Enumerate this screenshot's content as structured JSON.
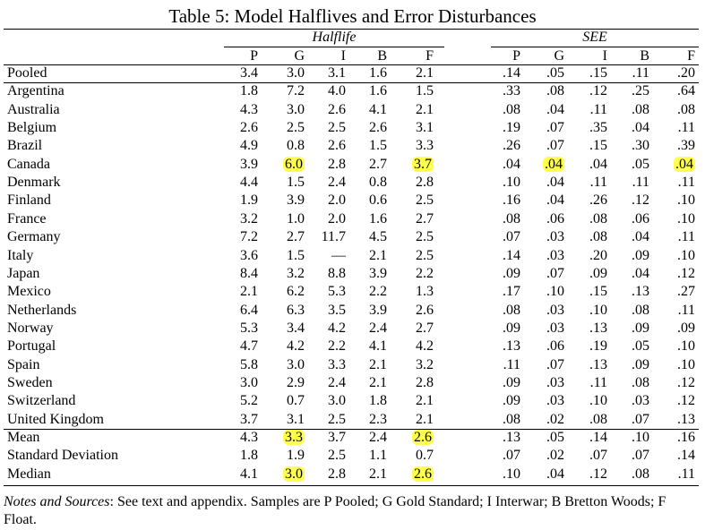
{
  "title": "Table 5: Model Halflives and Error Disturbances",
  "groups": {
    "halflife": "Halflife",
    "see": "SEE"
  },
  "columns": [
    "P",
    "G",
    "I",
    "B",
    "F"
  ],
  "rows": [
    {
      "label": "Pooled",
      "h": [
        "3.4",
        "3.0",
        "3.1",
        "1.6",
        "2.1"
      ],
      "s": [
        ".14",
        ".05",
        ".15",
        ".11",
        ".20"
      ]
    },
    {
      "label": "Argentina",
      "h": [
        "1.8",
        "7.2",
        "4.0",
        "1.6",
        "1.5"
      ],
      "s": [
        ".33",
        ".08",
        ".12",
        ".25",
        ".64"
      ]
    },
    {
      "label": "Australia",
      "h": [
        "4.3",
        "3.0",
        "2.6",
        "4.1",
        "2.1"
      ],
      "s": [
        ".08",
        ".04",
        ".11",
        ".08",
        ".08"
      ]
    },
    {
      "label": "Belgium",
      "h": [
        "2.6",
        "2.5",
        "2.5",
        "2.6",
        "3.1"
      ],
      "s": [
        ".19",
        ".07",
        ".35",
        ".04",
        ".11"
      ]
    },
    {
      "label": "Brazil",
      "h": [
        "4.9",
        "0.8",
        "2.6",
        "1.5",
        "3.3"
      ],
      "s": [
        ".26",
        ".07",
        ".15",
        ".30",
        ".39"
      ]
    },
    {
      "label": "Canada",
      "h": [
        "3.9",
        "6.0",
        "2.8",
        "2.7",
        "3.7"
      ],
      "s": [
        ".04",
        ".04",
        ".04",
        ".05",
        ".04"
      ]
    },
    {
      "label": "Denmark",
      "h": [
        "4.4",
        "1.5",
        "2.4",
        "0.8",
        "2.8"
      ],
      "s": [
        ".10",
        ".04",
        ".11",
        ".11",
        ".11"
      ]
    },
    {
      "label": "Finland",
      "h": [
        "1.9",
        "3.9",
        "2.0",
        "0.6",
        "2.5"
      ],
      "s": [
        ".16",
        ".04",
        ".26",
        ".12",
        ".10"
      ]
    },
    {
      "label": "France",
      "h": [
        "3.2",
        "1.0",
        "2.0",
        "1.6",
        "2.7"
      ],
      "s": [
        ".08",
        ".06",
        ".08",
        ".06",
        ".10"
      ]
    },
    {
      "label": "Germany",
      "h": [
        "7.2",
        "2.7",
        "11.7",
        "4.5",
        "2.5"
      ],
      "s": [
        ".07",
        ".03",
        ".08",
        ".04",
        ".11"
      ]
    },
    {
      "label": "Italy",
      "h": [
        "3.6",
        "1.5",
        "—",
        "2.1",
        "2.5"
      ],
      "s": [
        ".14",
        ".03",
        ".20",
        ".09",
        ".10"
      ]
    },
    {
      "label": "Japan",
      "h": [
        "8.4",
        "3.2",
        "8.8",
        "3.9",
        "2.2"
      ],
      "s": [
        ".09",
        ".07",
        ".09",
        ".04",
        ".12"
      ]
    },
    {
      "label": "Mexico",
      "h": [
        "2.1",
        "6.2",
        "5.3",
        "2.2",
        "1.3"
      ],
      "s": [
        ".17",
        ".10",
        ".15",
        ".13",
        ".27"
      ]
    },
    {
      "label": "Netherlands",
      "h": [
        "6.4",
        "6.3",
        "3.5",
        "3.9",
        "2.6"
      ],
      "s": [
        ".08",
        ".03",
        ".10",
        ".08",
        ".11"
      ]
    },
    {
      "label": "Norway",
      "h": [
        "5.3",
        "3.4",
        "4.2",
        "2.4",
        "2.7"
      ],
      "s": [
        ".09",
        ".03",
        ".13",
        ".09",
        ".09"
      ]
    },
    {
      "label": "Portugal",
      "h": [
        "4.7",
        "4.2",
        "2.2",
        "4.1",
        "4.2"
      ],
      "s": [
        ".13",
        ".06",
        ".19",
        ".05",
        ".10"
      ]
    },
    {
      "label": "Spain",
      "h": [
        "5.8",
        "3.0",
        "3.3",
        "2.1",
        "3.2"
      ],
      "s": [
        ".11",
        ".07",
        ".13",
        ".09",
        ".10"
      ]
    },
    {
      "label": "Sweden",
      "h": [
        "3.0",
        "2.9",
        "2.4",
        "2.1",
        "2.8"
      ],
      "s": [
        ".09",
        ".03",
        ".11",
        ".08",
        ".12"
      ]
    },
    {
      "label": "Switzerland",
      "h": [
        "5.2",
        "0.7",
        "3.0",
        "1.8",
        "2.1"
      ],
      "s": [
        ".09",
        ".03",
        ".10",
        ".03",
        ".12"
      ]
    },
    {
      "label": "United Kingdom",
      "h": [
        "3.7",
        "3.1",
        "2.5",
        "2.3",
        "2.1"
      ],
      "s": [
        ".08",
        ".02",
        ".08",
        ".07",
        ".13"
      ]
    },
    {
      "label": "Mean",
      "h": [
        "4.3",
        "3.3",
        "3.7",
        "2.4",
        "2.6"
      ],
      "s": [
        ".13",
        ".05",
        ".14",
        ".10",
        ".16"
      ]
    },
    {
      "label": "Standard Deviation",
      "h": [
        "1.8",
        "1.9",
        "2.5",
        "1.1",
        "0.7"
      ],
      "s": [
        ".07",
        ".02",
        ".07",
        ".07",
        ".14"
      ]
    },
    {
      "label": "Median",
      "h": [
        "4.1",
        "3.0",
        "2.8",
        "2.1",
        "2.6"
      ],
      "s": [
        ".10",
        ".04",
        ".12",
        ".08",
        ".11"
      ]
    }
  ],
  "highlighted": [
    {
      "row": 5,
      "group": "h",
      "col": 1
    },
    {
      "row": 5,
      "group": "h",
      "col": 4
    },
    {
      "row": 5,
      "group": "s",
      "col": 1
    },
    {
      "row": 5,
      "group": "s",
      "col": 4
    },
    {
      "row": 20,
      "group": "h",
      "col": 1
    },
    {
      "row": 20,
      "group": "h",
      "col": 4
    },
    {
      "row": 22,
      "group": "h",
      "col": 1
    },
    {
      "row": 22,
      "group": "h",
      "col": 4
    }
  ],
  "highlight_color": "#ffff4d",
  "notes": {
    "label": "Notes and Sources",
    "text": ": See text and appendix. Samples are P Pooled; G Gold Standard; I Interwar; B Bretton Woods; F Float."
  }
}
